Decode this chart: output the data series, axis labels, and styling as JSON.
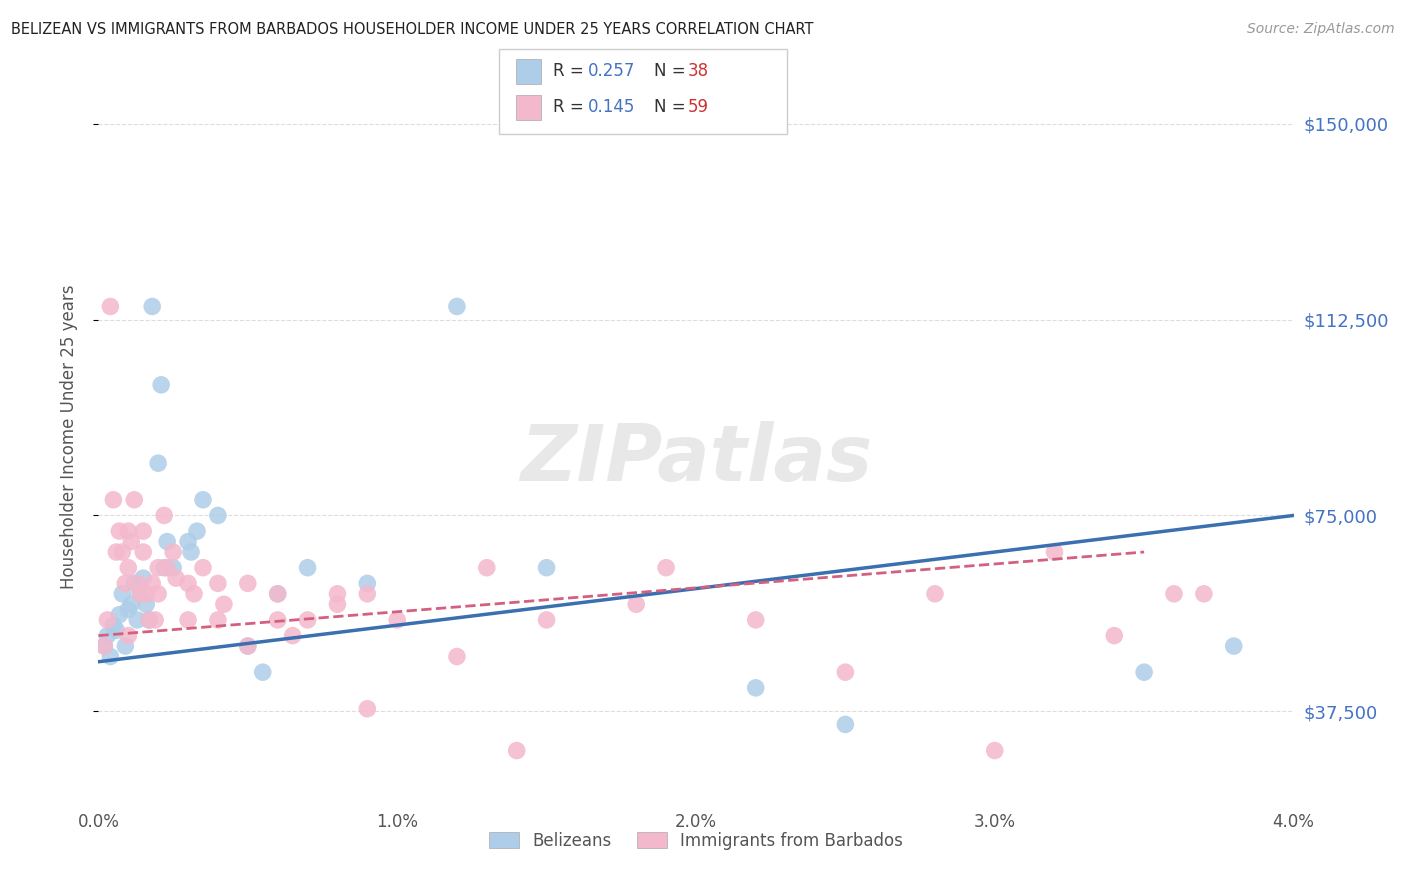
{
  "title": "BELIZEAN VS IMMIGRANTS FROM BARBADOS HOUSEHOLDER INCOME UNDER 25 YEARS CORRELATION CHART",
  "source": "Source: ZipAtlas.com",
  "ylabel": "Householder Income Under 25 years",
  "xlim": [
    0.0,
    0.04
  ],
  "ylim": [
    20000,
    160000
  ],
  "yticks": [
    37500,
    75000,
    112500,
    150000
  ],
  "ytick_labels": [
    "$37,500",
    "$75,000",
    "$112,500",
    "$150,000"
  ],
  "xtick_labels": [
    "0.0%",
    "1.0%",
    "2.0%",
    "3.0%",
    "4.0%"
  ],
  "xticks": [
    0.0,
    0.01,
    0.02,
    0.03,
    0.04
  ],
  "legend_r1": "0.257",
  "legend_n1": "38",
  "legend_r2": "0.145",
  "legend_n2": "59",
  "blue_color": "#aecde8",
  "pink_color": "#f4b8cc",
  "blue_line_color": "#3a6fb0",
  "pink_line_color": "#d46080",
  "watermark": "ZIPatlas",
  "belizeans_x": [
    0.0002,
    0.0003,
    0.0004,
    0.0005,
    0.0006,
    0.0007,
    0.0008,
    0.0009,
    0.001,
    0.0011,
    0.0012,
    0.0013,
    0.0014,
    0.0015,
    0.0016,
    0.0017,
    0.0018,
    0.002,
    0.0021,
    0.0022,
    0.0023,
    0.0025,
    0.003,
    0.0031,
    0.0033,
    0.0035,
    0.004,
    0.005,
    0.0055,
    0.006,
    0.007,
    0.009,
    0.012,
    0.015,
    0.022,
    0.025,
    0.035,
    0.038
  ],
  "belizeans_y": [
    50000,
    52000,
    48000,
    54000,
    53000,
    56000,
    60000,
    50000,
    57000,
    58000,
    62000,
    55000,
    60000,
    63000,
    58000,
    55000,
    115000,
    85000,
    100000,
    65000,
    70000,
    65000,
    70000,
    68000,
    72000,
    78000,
    75000,
    50000,
    45000,
    60000,
    65000,
    62000,
    115000,
    65000,
    42000,
    35000,
    45000,
    50000
  ],
  "barbados_x": [
    0.0002,
    0.0003,
    0.0004,
    0.0005,
    0.0006,
    0.0007,
    0.0008,
    0.0009,
    0.001,
    0.001,
    0.001,
    0.0011,
    0.0012,
    0.0013,
    0.0014,
    0.0015,
    0.0015,
    0.0016,
    0.0017,
    0.0018,
    0.0019,
    0.002,
    0.002,
    0.0022,
    0.0023,
    0.0025,
    0.0026,
    0.003,
    0.003,
    0.0032,
    0.0035,
    0.004,
    0.004,
    0.0042,
    0.005,
    0.005,
    0.006,
    0.006,
    0.0065,
    0.007,
    0.008,
    0.008,
    0.009,
    0.009,
    0.01,
    0.012,
    0.013,
    0.014,
    0.015,
    0.018,
    0.019,
    0.022,
    0.025,
    0.028,
    0.03,
    0.032,
    0.034,
    0.036,
    0.037
  ],
  "barbados_y": [
    50000,
    55000,
    115000,
    78000,
    68000,
    72000,
    68000,
    62000,
    72000,
    65000,
    52000,
    70000,
    78000,
    62000,
    60000,
    72000,
    68000,
    60000,
    55000,
    62000,
    55000,
    65000,
    60000,
    75000,
    65000,
    68000,
    63000,
    62000,
    55000,
    60000,
    65000,
    62000,
    55000,
    58000,
    62000,
    50000,
    55000,
    60000,
    52000,
    55000,
    60000,
    58000,
    60000,
    38000,
    55000,
    48000,
    65000,
    30000,
    55000,
    58000,
    65000,
    55000,
    45000,
    60000,
    30000,
    68000,
    52000,
    60000,
    60000
  ]
}
